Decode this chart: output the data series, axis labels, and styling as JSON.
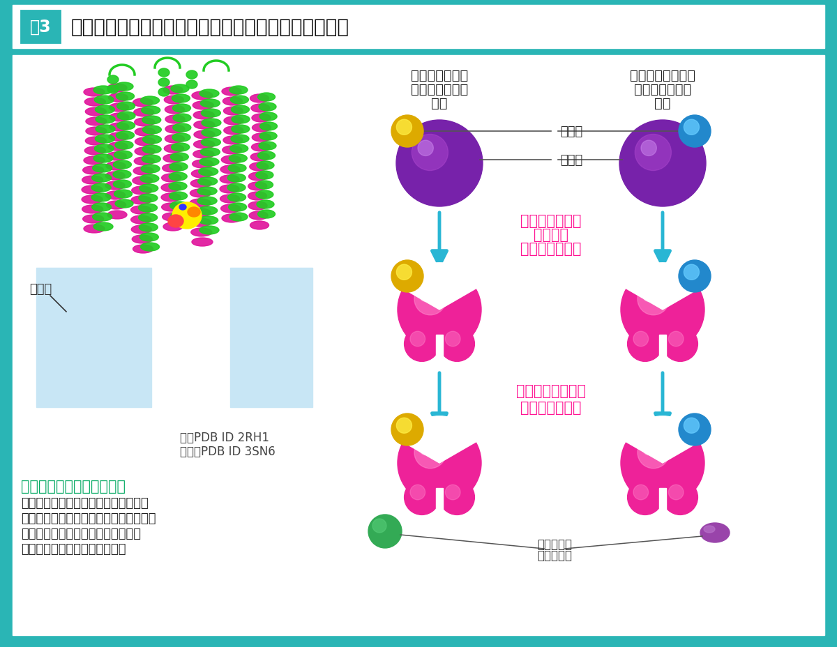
{
  "bg_color": "#2ab5b5",
  "white_bg": "#ffffff",
  "teal_color": "#2ab5b5",
  "arrow_color": "#29b6d4",
  "left_bg_blue": "#c8e6f5",
  "section_title_color": "#00a860",
  "body_text_color": "#222222",
  "magenta_text": "#ff1493",
  "purple_receptor": "#7722aa",
  "purple_highlight1": "#aa44cc",
  "purple_highlight2": "#cc88ee",
  "pink_receptor": "#ee2299",
  "pink_highlight1": "#ff88cc",
  "pink_highlight2": "#ffddee",
  "yellow_compound": "#ddaa00",
  "yellow_highlight": "#ffee44",
  "blue_compound": "#2288cc",
  "blue_highlight": "#66ccff",
  "green_signal": "#33aa55",
  "purple_signal": "#9944aa",
  "title_text": "アドレナリン受容体の構造と、シグナルの出方の違い",
  "fig_label": "図3",
  "label_kagoubutsu": "化合物",
  "label_juyotai": "受容体",
  "col1_line1": "効果につながる",
  "col1_line2": "シグナルが出る",
  "col1_line3": "場合",
  "col2_line1": "副作用につながる",
  "col2_line2": "シグナルが出る",
  "col2_line3": "場合",
  "arrow_text1_1": "化合物の結合で",
  "arrow_text1_2": "受容体の",
  "arrow_text1_3": "構造が変化する",
  "arrow_text2_1": "シグナルを伝える",
  "arrow_text2_2": "分子が結合する",
  "signal_label1": "シグナルを",
  "signal_label2": "伝える分子",
  "cell_membrane_label": "細胞膜",
  "pdb_green": "緑：PDB ID 2RH1",
  "pdb_red": "赤紫：PDB ID 3SN6",
  "section_subtitle": "アドレナリン受容体の構造",
  "body_line1": "何も化合物が結合していないときの構",
  "body_line2": "造（緑色）と、効果につながるシグナル",
  "body_line3": "を出す化合物が結合したときの構造",
  "body_line4": "（赤紫）を重ね合わせてある。"
}
